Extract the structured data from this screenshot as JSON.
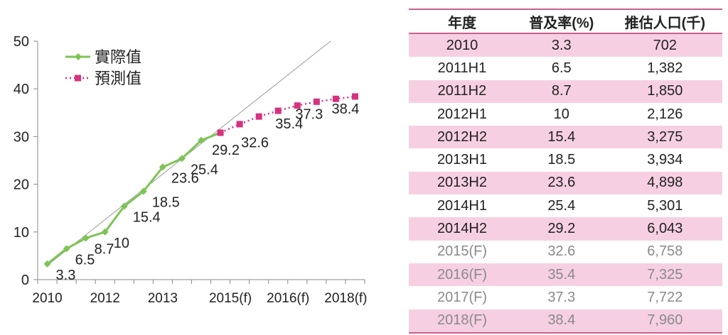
{
  "chart_data": {
    "type": "line",
    "categories": [
      "2010",
      "",
      "",
      "2012",
      "",
      "",
      "2013",
      "",
      "",
      "2015(f)",
      "",
      "",
      "2016(f)",
      "",
      "",
      "2018(f)",
      ""
    ],
    "ylim": [
      0,
      50
    ],
    "yticks": [
      0,
      10,
      20,
      30,
      40,
      50
    ],
    "series": [
      {
        "name": "實際值",
        "color": "#7dc454",
        "marker": "diamond",
        "values": [
          3.3,
          6.5,
          8.7,
          10,
          15.4,
          18.5,
          23.6,
          25.4,
          29.2,
          30.8,
          null,
          null,
          null,
          null,
          null,
          null,
          null
        ]
      },
      {
        "name": "預測值",
        "color": "#d6327f",
        "marker": "square",
        "values": [
          null,
          null,
          null,
          null,
          null,
          null,
          null,
          null,
          null,
          30.8,
          32.6,
          34.2,
          35.4,
          36.5,
          37.3,
          37.9,
          38.4
        ]
      }
    ],
    "data_labels": [
      "3.3",
      "6.5",
      "8.7",
      "10",
      "15.4",
      "18.5",
      "23.6",
      "25.4",
      "29.2",
      "32.6",
      "35.4",
      "37.3",
      "38.4"
    ],
    "legend": "top-left",
    "trendline": true
  },
  "table": {
    "headers": [
      "年度",
      "普及率(%)",
      "推估人口(千)"
    ],
    "rows": [
      {
        "cells": [
          "2010",
          "3.3",
          "702"
        ],
        "forecast": false
      },
      {
        "cells": [
          "2011H1",
          "6.5",
          "1,382"
        ],
        "forecast": false
      },
      {
        "cells": [
          "2011H2",
          "8.7",
          "1,850"
        ],
        "forecast": false
      },
      {
        "cells": [
          "2012H1",
          "10",
          "2,126"
        ],
        "forecast": false
      },
      {
        "cells": [
          "2012H2",
          "15.4",
          "3,275"
        ],
        "forecast": false
      },
      {
        "cells": [
          "2013H1",
          "18.5",
          "3,934"
        ],
        "forecast": false
      },
      {
        "cells": [
          "2013H2",
          "23.6",
          "4,898"
        ],
        "forecast": false
      },
      {
        "cells": [
          "2014H1",
          "25.4",
          "5,301"
        ],
        "forecast": false
      },
      {
        "cells": [
          "2014H2",
          "29.2",
          "6,043"
        ],
        "forecast": false
      },
      {
        "cells": [
          "2015(F)",
          "32.6",
          "6,758"
        ],
        "forecast": true
      },
      {
        "cells": [
          "2016(F)",
          "35.4",
          "7,325"
        ],
        "forecast": true
      },
      {
        "cells": [
          "2017(F)",
          "37.3",
          "7,722"
        ],
        "forecast": true
      },
      {
        "cells": [
          "2018(F)",
          "38.4",
          "7,960"
        ],
        "forecast": true
      }
    ]
  }
}
